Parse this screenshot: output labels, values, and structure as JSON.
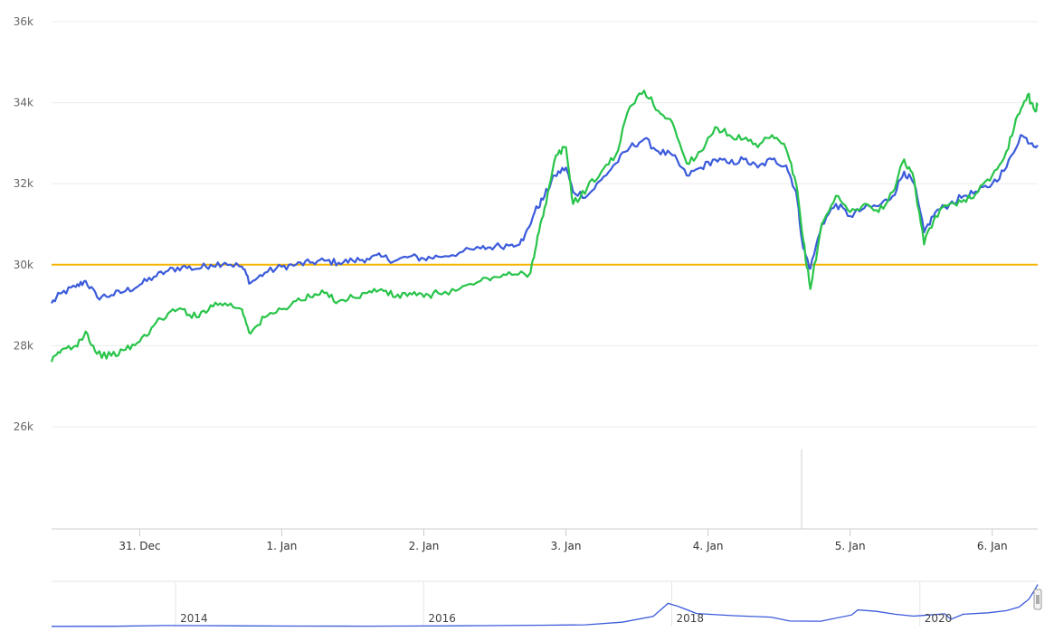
{
  "chart_data": {
    "type": "line",
    "title": "",
    "xlabel": "",
    "ylabel": "",
    "ylim": [
      26000,
      36000
    ],
    "y_ticks": [
      "26k",
      "28k",
      "30k",
      "32k",
      "34k",
      "36k"
    ],
    "y_tick_values": [
      26000,
      28000,
      30000,
      32000,
      34000,
      36000
    ],
    "x_ticks": [
      "31. Dec",
      "1. Jan",
      "2. Jan",
      "3. Jan",
      "4. Jan",
      "5. Jan",
      "6. Jan"
    ],
    "x_tick_days": [
      0,
      1,
      2,
      3,
      4,
      5,
      6
    ],
    "x_range_days": [
      -0.62,
      6.32
    ],
    "grid": true,
    "reference_line": {
      "value": 30000,
      "color": "#f5b400"
    },
    "series": [
      {
        "color": "#3b5bdb",
        "points": [
          [
            -0.62,
            29050
          ],
          [
            -0.55,
            29300
          ],
          [
            -0.45,
            29450
          ],
          [
            -0.38,
            29600
          ],
          [
            -0.3,
            29200
          ],
          [
            -0.2,
            29250
          ],
          [
            -0.1,
            29350
          ],
          [
            0.0,
            29500
          ],
          [
            0.1,
            29700
          ],
          [
            0.2,
            29850
          ],
          [
            0.3,
            29950
          ],
          [
            0.4,
            29900
          ],
          [
            0.5,
            30000
          ],
          [
            0.6,
            30050
          ],
          [
            0.72,
            29950
          ],
          [
            0.78,
            29550
          ],
          [
            0.88,
            29800
          ],
          [
            1.0,
            29950
          ],
          [
            1.1,
            30000
          ],
          [
            1.2,
            30050
          ],
          [
            1.3,
            30100
          ],
          [
            1.4,
            30050
          ],
          [
            1.5,
            30100
          ],
          [
            1.6,
            30150
          ],
          [
            1.7,
            30200
          ],
          [
            1.8,
            30100
          ],
          [
            1.9,
            30200
          ],
          [
            2.0,
            30150
          ],
          [
            2.1,
            30200
          ],
          [
            2.25,
            30300
          ],
          [
            2.4,
            30400
          ],
          [
            2.5,
            30450
          ],
          [
            2.62,
            30500
          ],
          [
            2.7,
            30600
          ],
          [
            2.78,
            31300
          ],
          [
            2.85,
            31700
          ],
          [
            2.92,
            32200
          ],
          [
            3.0,
            32400
          ],
          [
            3.05,
            31800
          ],
          [
            3.15,
            31700
          ],
          [
            3.25,
            32100
          ],
          [
            3.35,
            32500
          ],
          [
            3.45,
            32900
          ],
          [
            3.55,
            33100
          ],
          [
            3.65,
            32800
          ],
          [
            3.75,
            32700
          ],
          [
            3.85,
            32200
          ],
          [
            3.95,
            32400
          ],
          [
            4.05,
            32600
          ],
          [
            4.15,
            32500
          ],
          [
            4.25,
            32600
          ],
          [
            4.35,
            32400
          ],
          [
            4.45,
            32600
          ],
          [
            4.55,
            32450
          ],
          [
            4.62,
            31800
          ],
          [
            4.67,
            30400
          ],
          [
            4.72,
            29900
          ],
          [
            4.8,
            31000
          ],
          [
            4.9,
            31500
          ],
          [
            5.0,
            31200
          ],
          [
            5.1,
            31400
          ],
          [
            5.2,
            31450
          ],
          [
            5.3,
            31700
          ],
          [
            5.38,
            32300
          ],
          [
            5.45,
            32000
          ],
          [
            5.52,
            30800
          ],
          [
            5.6,
            31300
          ],
          [
            5.7,
            31500
          ],
          [
            5.8,
            31700
          ],
          [
            5.9,
            31800
          ],
          [
            6.0,
            32000
          ],
          [
            6.1,
            32400
          ],
          [
            6.2,
            33200
          ],
          [
            6.28,
            33000
          ],
          [
            6.32,
            32950
          ]
        ]
      },
      {
        "color": "#28c44a",
        "points": [
          [
            -0.62,
            27600
          ],
          [
            -0.55,
            27900
          ],
          [
            -0.45,
            28000
          ],
          [
            -0.38,
            28350
          ],
          [
            -0.3,
            27800
          ],
          [
            -0.2,
            27750
          ],
          [
            -0.1,
            27900
          ],
          [
            0.0,
            28100
          ],
          [
            0.1,
            28500
          ],
          [
            0.2,
            28800
          ],
          [
            0.3,
            28900
          ],
          [
            0.4,
            28700
          ],
          [
            0.5,
            29000
          ],
          [
            0.6,
            29050
          ],
          [
            0.72,
            28900
          ],
          [
            0.78,
            28300
          ],
          [
            0.88,
            28700
          ],
          [
            1.0,
            28900
          ],
          [
            1.1,
            29100
          ],
          [
            1.2,
            29200
          ],
          [
            1.3,
            29300
          ],
          [
            1.4,
            29100
          ],
          [
            1.5,
            29200
          ],
          [
            1.6,
            29300
          ],
          [
            1.7,
            29400
          ],
          [
            1.8,
            29200
          ],
          [
            1.9,
            29300
          ],
          [
            2.0,
            29200
          ],
          [
            2.1,
            29300
          ],
          [
            2.25,
            29400
          ],
          [
            2.4,
            29600
          ],
          [
            2.5,
            29700
          ],
          [
            2.62,
            29750
          ],
          [
            2.75,
            29800
          ],
          [
            2.8,
            30700
          ],
          [
            2.86,
            31500
          ],
          [
            2.93,
            32700
          ],
          [
            3.0,
            32900
          ],
          [
            3.05,
            31500
          ],
          [
            3.15,
            31900
          ],
          [
            3.25,
            32300
          ],
          [
            3.35,
            32700
          ],
          [
            3.45,
            33900
          ],
          [
            3.55,
            34300
          ],
          [
            3.65,
            33800
          ],
          [
            3.75,
            33500
          ],
          [
            3.85,
            32500
          ],
          [
            3.95,
            32800
          ],
          [
            4.05,
            33400
          ],
          [
            4.15,
            33200
          ],
          [
            4.25,
            33100
          ],
          [
            4.35,
            32900
          ],
          [
            4.45,
            33200
          ],
          [
            4.55,
            32850
          ],
          [
            4.62,
            32000
          ],
          [
            4.67,
            30600
          ],
          [
            4.72,
            29400
          ],
          [
            4.8,
            31000
          ],
          [
            4.9,
            31700
          ],
          [
            5.0,
            31300
          ],
          [
            5.1,
            31500
          ],
          [
            5.2,
            31300
          ],
          [
            5.3,
            31800
          ],
          [
            5.38,
            32600
          ],
          [
            5.45,
            32100
          ],
          [
            5.52,
            30500
          ],
          [
            5.6,
            31200
          ],
          [
            5.7,
            31500
          ],
          [
            5.8,
            31600
          ],
          [
            5.9,
            31800
          ],
          [
            6.0,
            32200
          ],
          [
            6.1,
            32800
          ],
          [
            6.18,
            33700
          ],
          [
            6.25,
            34200
          ],
          [
            6.3,
            33800
          ],
          [
            6.32,
            33950
          ]
        ]
      }
    ]
  },
  "navigator": {
    "x_ticks": [
      "2014",
      "2016",
      "2018",
      "2020"
    ],
    "x_tick_years": [
      2014,
      2016,
      2018,
      2020
    ],
    "x_range_years": [
      2013.0,
      2020.95
    ],
    "y_range": [
      0,
      30000
    ],
    "color": "#3b5bdb",
    "points": [
      [
        2013.0,
        150
      ],
      [
        2013.5,
        180
      ],
      [
        2013.9,
        700
      ],
      [
        2014.2,
        600
      ],
      [
        2014.6,
        450
      ],
      [
        2015.0,
        300
      ],
      [
        2015.5,
        250
      ],
      [
        2016.0,
        400
      ],
      [
        2016.5,
        650
      ],
      [
        2017.0,
        950
      ],
      [
        2017.3,
        1200
      ],
      [
        2017.6,
        3000
      ],
      [
        2017.85,
        7000
      ],
      [
        2017.97,
        16000
      ],
      [
        2018.05,
        14000
      ],
      [
        2018.2,
        9000
      ],
      [
        2018.5,
        7500
      ],
      [
        2018.8,
        6500
      ],
      [
        2018.95,
        3800
      ],
      [
        2019.2,
        3700
      ],
      [
        2019.45,
        8000
      ],
      [
        2019.5,
        11500
      ],
      [
        2019.65,
        10500
      ],
      [
        2019.8,
        8500
      ],
      [
        2019.95,
        7200
      ],
      [
        2020.2,
        8800
      ],
      [
        2020.25,
        5000
      ],
      [
        2020.35,
        8500
      ],
      [
        2020.55,
        9500
      ],
      [
        2020.7,
        11000
      ],
      [
        2020.8,
        13500
      ],
      [
        2020.88,
        19000
      ],
      [
        2020.93,
        26000
      ],
      [
        2020.95,
        29000
      ]
    ]
  }
}
